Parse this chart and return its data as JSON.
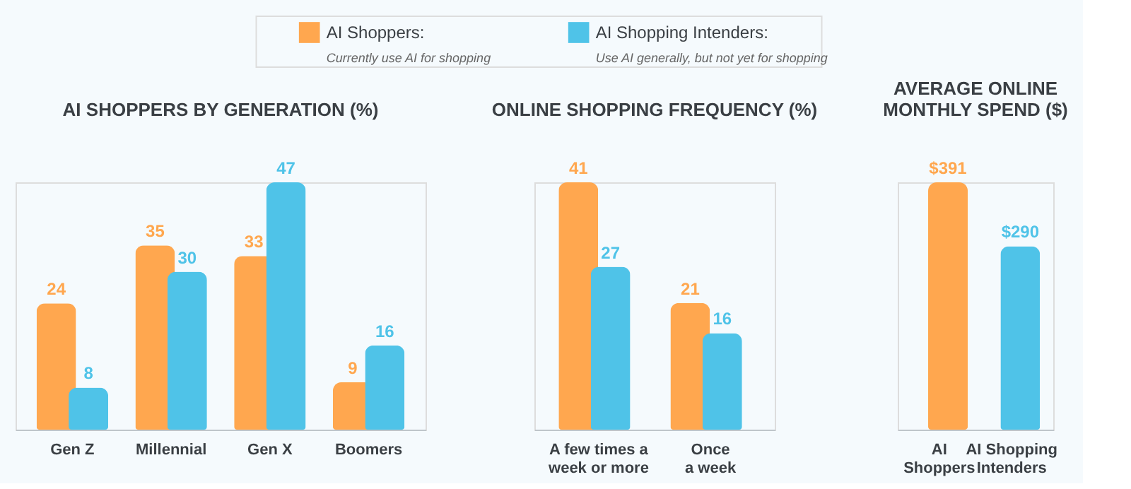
{
  "chart_data": [
    {
      "type": "bar",
      "title": "AI SHOPPERS BY GENERATION (%)",
      "categories": [
        "Gen Z",
        "Millennial",
        "Gen X",
        "Boomers"
      ],
      "series": [
        {
          "name": "AI Shoppers:",
          "color": "#ffa74f",
          "values": [
            24,
            35,
            33,
            9
          ]
        },
        {
          "name": "AI Shopping Intenders:",
          "color": "#4fc3e8",
          "values": [
            8,
            30,
            47,
            16
          ]
        }
      ],
      "annotations": [
        "Currently use AI for shopping",
        "Use AI generally, but not yet for shopping"
      ],
      "data_labels": true,
      "legend": "top",
      "grid": false
    },
    {
      "type": "bar",
      "title": "ONLINE SHOPPING FREQUENCY (%)",
      "categories": [
        "A few times a\nweek or more",
        "Once\na week"
      ],
      "series": [
        {
          "color": "#ffa74f",
          "values": [
            41,
            21
          ]
        },
        {
          "color": "#4fc3e8",
          "values": [
            27,
            16
          ]
        }
      ],
      "data_labels": true,
      "grid": false
    },
    {
      "type": "bar",
      "title": "AVERAGE ONLINE\nMONTHLY SPEND ($)",
      "categories": [
        "AI\nShoppers",
        "AI Shopping\nIntenders"
      ],
      "series": [
        {
          "color": "#ffa74f",
          "values": [
            391,
            null
          ],
          "value_labels": [
            "$391",
            null
          ]
        },
        {
          "color": "#4fc3e8",
          "values": [
            null,
            290
          ],
          "value_labels": [
            null,
            "$290"
          ]
        }
      ],
      "grid": false
    }
  ]
}
